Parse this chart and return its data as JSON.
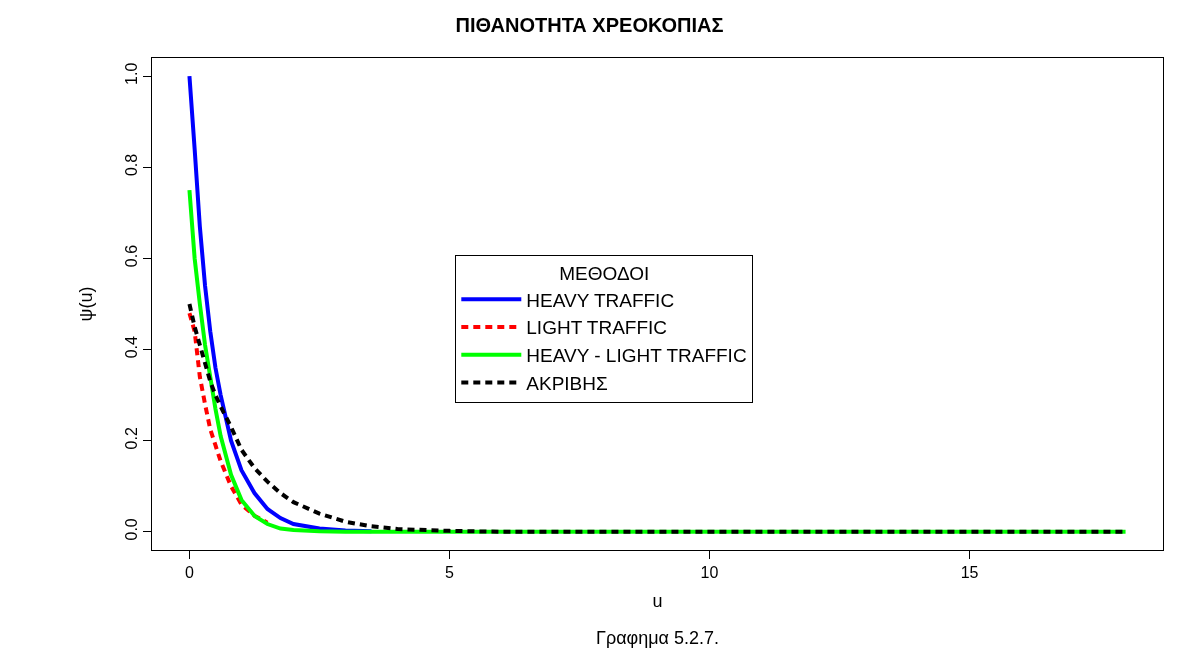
{
  "chart_data": {
    "type": "line",
    "title": "ΠΙΘΑΝΟΤΗΤΑ ΧΡΕΟΚΟΠΙΑΣ",
    "xlabel": "u",
    "ylabel": "ψ(u)",
    "legend_title": "ΜΕΘΟΔΟΙ",
    "annotations": [
      "Γραφημα 5.2.7."
    ],
    "x": [
      0,
      0.1,
      0.2,
      0.3,
      0.4,
      0.5,
      0.6,
      0.8,
      1.0,
      1.25,
      1.5,
      1.75,
      2,
      2.5,
      3,
      3.5,
      4,
      5,
      6,
      8,
      10,
      12,
      14,
      16,
      18
    ],
    "series": [
      {
        "name": "HEAVY TRAFFIC",
        "color": "#0000ff",
        "line_style": "solid",
        "values": [
          1.0,
          0.84,
          0.67,
          0.54,
          0.44,
          0.36,
          0.3,
          0.2,
          0.135,
          0.085,
          0.05,
          0.03,
          0.017,
          0.007,
          0.003,
          0.001,
          null,
          null,
          null,
          null,
          null,
          null,
          null,
          null,
          null
        ]
      },
      {
        "name": "LIGHT TRAFFIC",
        "color": "#ff0000",
        "line_style": "dashed",
        "values": [
          0.48,
          0.44,
          0.34,
          0.28,
          0.225,
          0.19,
          0.155,
          0.1,
          0.06,
          0.035,
          0.02,
          null,
          null,
          null,
          null,
          null,
          null,
          null,
          null,
          null,
          null,
          null,
          null,
          null,
          null
        ]
      },
      {
        "name": "HEAVY - LIGHT TRAFFIC",
        "color": "#00ff00",
        "line_style": "solid",
        "values": [
          0.75,
          0.6,
          0.5,
          0.41,
          0.34,
          0.27,
          0.21,
          0.125,
          0.07,
          0.035,
          0.017,
          0.007,
          0.004,
          0.001,
          0,
          0,
          0,
          0,
          0,
          0,
          0,
          0,
          0,
          0,
          0
        ]
      },
      {
        "name": "ΑΚΡΙΒΗΣ",
        "color": "#000000",
        "line_style": "dashed",
        "values": [
          0.5,
          0.45,
          0.41,
          0.37,
          0.33,
          0.3,
          0.275,
          0.23,
          0.18,
          0.14,
          0.11,
          0.085,
          0.065,
          0.04,
          0.022,
          0.012,
          0.006,
          0.002,
          0,
          0,
          0,
          0,
          0,
          0,
          0
        ]
      }
    ],
    "xlim": [
      -0.72,
      18.72
    ],
    "xticks": [
      0,
      5,
      10,
      15
    ],
    "ylim": [
      -0.04,
      1.04
    ],
    "yticks": [
      {
        "value": 0,
        "label": "0.0"
      },
      {
        "value": 0.2,
        "label": "0.2"
      },
      {
        "value": 0.4,
        "label": "0.4"
      },
      {
        "value": 0.6,
        "label": "0.6"
      },
      {
        "value": 0.8,
        "label": "0.8"
      },
      {
        "value": 1.0,
        "label": "1.0"
      }
    ],
    "legend": "center",
    "marker": "none"
  }
}
